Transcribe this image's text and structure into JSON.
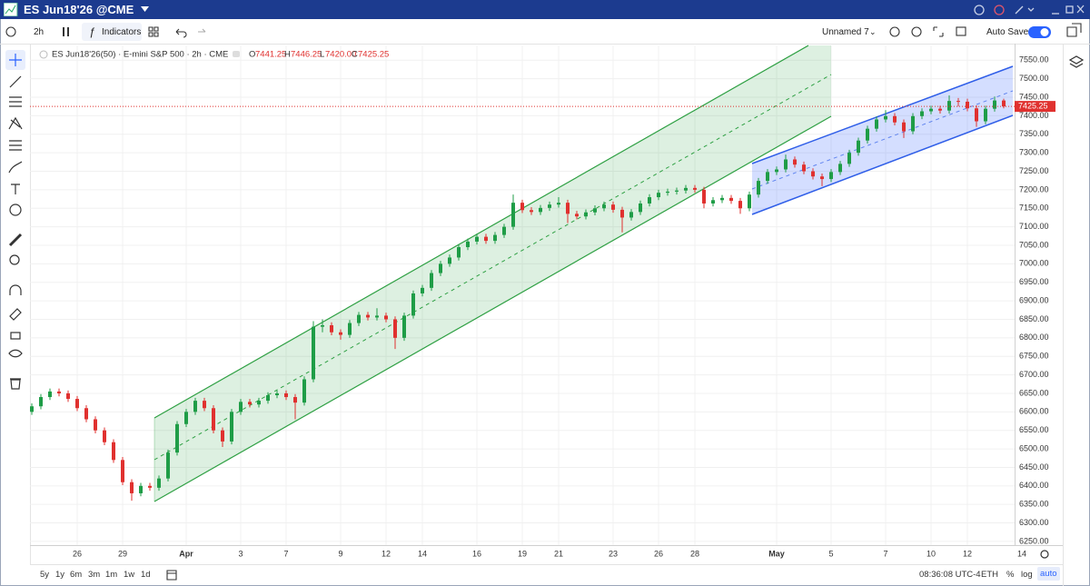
{
  "window": {
    "title": "ES Jun18'26 @CME"
  },
  "toolbar": {
    "interval": "2h",
    "indicators": "Indicators",
    "layout": "Unnamed 7",
    "autosave": "Auto Save"
  },
  "bottom_bar": {
    "ranges": [
      "5y",
      "1y",
      "6m",
      "3m",
      "1m",
      "1w",
      "1d"
    ],
    "time": "08:36:08 UTC-4",
    "session": "ETH",
    "options": [
      "%",
      "log",
      "auto"
    ]
  },
  "chart_data": {
    "type": "candlestick",
    "title": "ES Jun18'26(50) · E-mini S&P 500 · 2h · CME",
    "ohlc_labels": [
      "O",
      "H",
      "L",
      "C"
    ],
    "last_bar_labels": [
      "7441.25",
      "7446.25",
      "7420.00",
      "7425.25"
    ],
    "up_color": "#1f9d47",
    "down_color": "#e0312f",
    "grid": true,
    "categories": [
      null,
      null,
      null,
      null,
      null,
      "26",
      null,
      null,
      null,
      null,
      "29",
      null,
      null,
      null,
      null,
      null,
      null,
      "Apr",
      null,
      null,
      null,
      null,
      null,
      "3",
      null,
      null,
      null,
      null,
      "7",
      null,
      null,
      null,
      null,
      null,
      "9",
      null,
      null,
      null,
      null,
      "12",
      null,
      null,
      null,
      "14",
      null,
      null,
      null,
      null,
      null,
      "16",
      null,
      null,
      null,
      null,
      "19",
      null,
      null,
      null,
      "21",
      null,
      null,
      null,
      null,
      null,
      "23",
      null,
      null,
      null,
      null,
      "26",
      null,
      null,
      null,
      "28",
      null,
      null,
      null,
      null,
      null,
      null,
      null,
      null,
      "May",
      null,
      null,
      null,
      null,
      null,
      "5",
      null,
      null,
      null,
      null,
      null,
      "7",
      null,
      null,
      null,
      null,
      "10",
      null,
      null,
      null,
      "12",
      null,
      null,
      null,
      null,
      null,
      "14"
    ],
    "open": [
      6600,
      6615,
      6640,
      6655,
      6650,
      6635,
      6610,
      6580,
      6550,
      6518,
      6470,
      6410,
      6380,
      6400,
      6395,
      6420,
      6490,
      6567,
      6600,
      6630,
      6610,
      6550,
      6520,
      6600,
      6627,
      6620,
      6630,
      6645,
      6650,
      6640,
      6625,
      6688,
      6830,
      6834,
      6815,
      6808,
      6840,
      6862,
      6855,
      6860,
      6850,
      6800,
      6860,
      6920,
      6935,
      6975,
      7000,
      7017,
      7045,
      7060,
      7073,
      7062,
      7078,
      7100,
      7165,
      7145,
      7140,
      7151,
      7160,
      7165,
      7135,
      7128,
      7139,
      7150,
      7160,
      7146,
      7125,
      7140,
      7163,
      7180,
      7192,
      7195,
      7198,
      7205,
      7200,
      7163,
      7172,
      7178,
      7170,
      7150,
      7187,
      7224,
      7248,
      7255,
      7282,
      7268,
      7250,
      7236,
      7229,
      7248,
      7270,
      7300,
      7333,
      7365,
      7390,
      7399,
      7382,
      7358,
      7399,
      7412,
      7419,
      7414,
      7440,
      7438,
      7420,
      7385,
      7419,
      7441.25,
      null,
      null
    ],
    "high": [
      6623,
      6648,
      6663,
      6663,
      6658,
      6643,
      6618,
      6588,
      6558,
      6526,
      6478,
      6418,
      6408,
      6408,
      6428,
      6498,
      6575,
      6608,
      6638,
      6638,
      6618,
      6558,
      6608,
      6635,
      6635,
      6638,
      6653,
      6658,
      6658,
      6648,
      6696,
      6845,
      6850,
      6842,
      6823,
      6848,
      6870,
      6870,
      6880,
      6868,
      6858,
      6868,
      6928,
      6943,
      6983,
      7008,
      7025,
      7053,
      7068,
      7081,
      7081,
      7086,
      7108,
      7187,
      7173,
      7153,
      7159,
      7168,
      7180,
      7173,
      7143,
      7147,
      7158,
      7168,
      7168,
      7154,
      7148,
      7171,
      7188,
      7200,
      7203,
      7206,
      7213,
      7213,
      7208,
      7180,
      7186,
      7186,
      7178,
      7195,
      7232,
      7256,
      7263,
      7295,
      7290,
      7276,
      7258,
      7244,
      7256,
      7278,
      7308,
      7341,
      7373,
      7398,
      7415,
      7407,
      7390,
      7407,
      7420,
      7427,
      7427,
      7455,
      7448,
      7446,
      7428,
      7427,
      7452,
      7446.25,
      null,
      null
    ],
    "low": [
      6592,
      6607,
      6632,
      6642,
      6627,
      6602,
      6572,
      6542,
      6510,
      6462,
      6402,
      6360,
      6372,
      6387,
      6387,
      6412,
      6482,
      6559,
      6592,
      6602,
      6542,
      6505,
      6512,
      6592,
      6612,
      6612,
      6622,
      6637,
      6632,
      6580,
      6617,
      6680,
      6815,
      6807,
      6795,
      6800,
      6832,
      6847,
      6847,
      6842,
      6770,
      6792,
      6852,
      6912,
      6927,
      6967,
      6992,
      7009,
      7037,
      7052,
      7054,
      7054,
      7070,
      7092,
      7137,
      7132,
      7132,
      7143,
      7152,
      7110,
      7120,
      7120,
      7131,
      7142,
      7138,
      7085,
      7117,
      7132,
      7155,
      7172,
      7184,
      7187,
      7190,
      7192,
      7150,
      7155,
      7164,
      7162,
      7135,
      7142,
      7179,
      7216,
      7240,
      7247,
      7260,
      7242,
      7228,
      7210,
      7221,
      7240,
      7262,
      7292,
      7325,
      7357,
      7382,
      7374,
      7340,
      7350,
      7391,
      7404,
      7406,
      7406,
      7425,
      7412,
      7370,
      7377,
      7411,
      7420,
      null,
      null
    ],
    "close": [
      6615,
      6640,
      6655,
      6650,
      6635,
      6610,
      6580,
      6550,
      6518,
      6470,
      6410,
      6380,
      6400,
      6395,
      6420,
      6490,
      6567,
      6600,
      6630,
      6610,
      6550,
      6520,
      6600,
      6627,
      6620,
      6630,
      6645,
      6650,
      6640,
      6625,
      6688,
      6830,
      6834,
      6815,
      6808,
      6840,
      6862,
      6855,
      6860,
      6850,
      6800,
      6860,
      6920,
      6935,
      6975,
      7000,
      7017,
      7045,
      7060,
      7073,
      7062,
      7078,
      7100,
      7165,
      7145,
      7140,
      7151,
      7160,
      7165,
      7135,
      7128,
      7139,
      7150,
      7160,
      7146,
      7125,
      7140,
      7163,
      7180,
      7192,
      7195,
      7198,
      7205,
      7200,
      7163,
      7172,
      7178,
      7170,
      7150,
      7187,
      7224,
      7248,
      7255,
      7282,
      7268,
      7250,
      7236,
      7229,
      7248,
      7270,
      7300,
      7333,
      7365,
      7390,
      7399,
      7382,
      7358,
      7399,
      7412,
      7419,
      7414,
      7440,
      7438,
      7420,
      7385,
      7419,
      7441.25,
      7425.25,
      null,
      null
    ],
    "ylim": [
      6240,
      7590
    ],
    "yticks": [
      {
        "value": 6250,
        "label": "6250.00"
      },
      {
        "value": 6300,
        "label": "6300.00"
      },
      {
        "value": 6350,
        "label": "6350.00"
      },
      {
        "value": 6400,
        "label": "6400.00"
      },
      {
        "value": 6450,
        "label": "6450.00"
      },
      {
        "value": 6500,
        "label": "6500.00"
      },
      {
        "value": 6550,
        "label": "6550.00"
      },
      {
        "value": 6600,
        "label": "6600.00"
      },
      {
        "value": 6650,
        "label": "6650.00"
      },
      {
        "value": 6700,
        "label": "6700.00"
      },
      {
        "value": 6750,
        "label": "6750.00"
      },
      {
        "value": 6800,
        "label": "6800.00"
      },
      {
        "value": 6850,
        "label": "6850.00"
      },
      {
        "value": 6900,
        "label": "6900.00"
      },
      {
        "value": 6950,
        "label": "6950.00"
      },
      {
        "value": 7000,
        "label": "7000.00"
      },
      {
        "value": 7050,
        "label": "7050.00"
      },
      {
        "value": 7100,
        "label": "7100.00"
      },
      {
        "value": 7150,
        "label": "7150.00"
      },
      {
        "value": 7200,
        "label": "7200.00"
      },
      {
        "value": 7250,
        "label": "7250.00"
      },
      {
        "value": 7300,
        "label": "7300.00"
      },
      {
        "value": 7350,
        "label": "7350.00"
      },
      {
        "value": 7400,
        "label": "7400.00"
      },
      {
        "value": 7450,
        "label": "7450.00"
      },
      {
        "value": 7500,
        "label": "7500.00"
      },
      {
        "value": 7550,
        "label": "7550.00"
      }
    ]
  }
}
